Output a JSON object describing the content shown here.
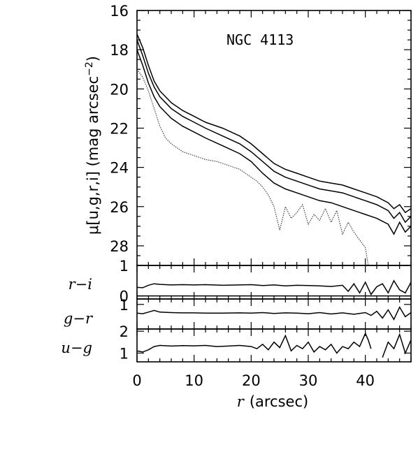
{
  "chart_data": {
    "type": "line",
    "annotation": "NGC 4113",
    "xlabel_var": "r",
    "xlabel_unit": "(arcsec)",
    "ylabel_main": "μ[u,g,r,i] (mag arcsec",
    "ylabel_exp": "−2",
    "ylabel_close": ")",
    "xlim": [
      0,
      48
    ],
    "x_ticks": [
      "0",
      "10",
      "20",
      "30",
      "40"
    ],
    "x_tick_values": [
      0,
      10,
      20,
      30,
      40
    ],
    "panels": [
      {
        "name": "mu",
        "ylim": [
          16,
          29
        ],
        "inverted": true,
        "y_tick_labels": [
          "16",
          "18",
          "20",
          "22",
          "24",
          "26",
          "28"
        ],
        "y_tick_values": [
          16,
          18,
          20,
          22,
          24,
          26,
          28
        ],
        "series": [
          {
            "style": "solid",
            "x": [
              0,
              1,
              2,
              3,
              4,
              6,
              8,
              10,
              12,
              15,
              18,
              20,
              22,
              24,
              26,
              28,
              30,
              32,
              34,
              36,
              38,
              40,
              42,
              44,
              45,
              46,
              47,
              48
            ],
            "y": [
              17.2,
              17.9,
              18.8,
              19.6,
              20.1,
              20.7,
              21.1,
              21.4,
              21.7,
              22.0,
              22.4,
              22.8,
              23.3,
              23.8,
              24.1,
              24.3,
              24.5,
              24.7,
              24.8,
              24.9,
              25.1,
              25.3,
              25.5,
              25.8,
              26.1,
              25.9,
              26.3,
              26.1
            ]
          },
          {
            "style": "solid",
            "x": [
              0,
              1,
              2,
              3,
              4,
              6,
              8,
              10,
              12,
              15,
              18,
              20,
              22,
              24,
              26,
              28,
              30,
              32,
              34,
              36,
              38,
              40,
              42,
              44,
              45,
              46,
              47,
              48
            ],
            "y": [
              17.5,
              18.3,
              19.2,
              19.9,
              20.4,
              21.0,
              21.4,
              21.7,
              22.0,
              22.4,
              22.8,
              23.2,
              23.7,
              24.2,
              24.5,
              24.7,
              24.9,
              25.1,
              25.2,
              25.3,
              25.5,
              25.7,
              25.9,
              26.2,
              26.6,
              26.3,
              26.8,
              26.5
            ]
          },
          {
            "style": "solid",
            "x": [
              0,
              1,
              2,
              3,
              4,
              6,
              8,
              10,
              12,
              15,
              18,
              20,
              22,
              24,
              26,
              28,
              30,
              32,
              34,
              36,
              38,
              40,
              42,
              44,
              45,
              46,
              47,
              48
            ],
            "y": [
              18.0,
              18.8,
              19.7,
              20.4,
              20.9,
              21.5,
              21.9,
              22.2,
              22.5,
              22.9,
              23.3,
              23.7,
              24.3,
              24.8,
              25.1,
              25.3,
              25.5,
              25.7,
              25.8,
              26.0,
              26.2,
              26.4,
              26.6,
              26.9,
              27.4,
              26.8,
              27.3,
              27.0
            ]
          },
          {
            "style": "dotted",
            "x": [
              0,
              1,
              2,
              3,
              4,
              5,
              6,
              7,
              8,
              10,
              12,
              14,
              16,
              18,
              20,
              21,
              22,
              23,
              24,
              25,
              26,
              27,
              28,
              29,
              30,
              31,
              32,
              33,
              34,
              35,
              36,
              37,
              38,
              39,
              40,
              40.5
            ],
            "y": [
              19.0,
              19.4,
              20.1,
              21.0,
              21.9,
              22.5,
              22.8,
              23.0,
              23.2,
              23.4,
              23.6,
              23.7,
              23.9,
              24.1,
              24.5,
              24.7,
              25.0,
              25.4,
              26.0,
              27.2,
              26.0,
              26.6,
              26.3,
              25.9,
              26.9,
              26.4,
              26.7,
              26.1,
              26.8,
              26.2,
              27.4,
              26.8,
              27.3,
              27.7,
              28.1,
              29.0
            ]
          }
        ]
      },
      {
        "name": "r-i",
        "label": "r−i",
        "ylim": [
          -0.1,
          1
        ],
        "y_tick_labels": [
          "1",
          "0"
        ],
        "y_tick_values": [
          1,
          0
        ],
        "series": [
          {
            "style": "solid",
            "x": [
              0,
              1,
              2,
              3,
              4,
              6,
              8,
              10,
              12,
              15,
              18,
              20,
              22,
              24,
              26,
              28,
              30,
              32,
              34,
              36,
              37,
              38,
              39,
              40,
              41,
              42,
              43,
              44,
              45,
              46,
              47,
              48
            ],
            "y": [
              0.28,
              0.27,
              0.35,
              0.4,
              0.38,
              0.36,
              0.37,
              0.36,
              0.37,
              0.35,
              0.36,
              0.37,
              0.34,
              0.36,
              0.33,
              0.35,
              0.34,
              0.33,
              0.31,
              0.35,
              0.15,
              0.4,
              0.1,
              0.45,
              0.05,
              0.3,
              0.4,
              0.1,
              0.5,
              0.2,
              0.1,
              0.45
            ]
          }
        ]
      },
      {
        "name": "g-r",
        "label": "g−r",
        "ylim": [
          0.1,
          1.2
        ],
        "y_tick_labels": [
          "1"
        ],
        "y_tick_values": [
          1
        ],
        "series": [
          {
            "style": "solid",
            "x": [
              0,
              1,
              2,
              3,
              4,
              6,
              8,
              10,
              12,
              15,
              18,
              20,
              22,
              24,
              26,
              28,
              30,
              32,
              34,
              36,
              38,
              40,
              41,
              42,
              43,
              44,
              45,
              46,
              47,
              48
            ],
            "y": [
              0.68,
              0.66,
              0.72,
              0.78,
              0.72,
              0.7,
              0.69,
              0.69,
              0.68,
              0.68,
              0.69,
              0.68,
              0.7,
              0.67,
              0.69,
              0.68,
              0.66,
              0.7,
              0.65,
              0.69,
              0.64,
              0.7,
              0.6,
              0.75,
              0.5,
              0.8,
              0.45,
              0.9,
              0.55,
              0.7
            ]
          }
        ]
      },
      {
        "name": "u-g",
        "label": "u−g",
        "ylim": [
          0.6,
          2.1
        ],
        "y_tick_labels": [
          "2",
          "1"
        ],
        "y_tick_values": [
          2,
          1
        ],
        "series": [
          {
            "style": "solid",
            "x": [
              0,
              1,
              2,
              3,
              4,
              6,
              8,
              10,
              12,
              14,
              16,
              18,
              20,
              21,
              22,
              23,
              24,
              25,
              26,
              27,
              28,
              29,
              30,
              31,
              32,
              33,
              34,
              35,
              36,
              37,
              38,
              39,
              40,
              40.5,
              41
            ],
            "y": [
              1.1,
              1.05,
              1.15,
              1.3,
              1.35,
              1.32,
              1.34,
              1.33,
              1.35,
              1.3,
              1.32,
              1.35,
              1.3,
              1.2,
              1.4,
              1.15,
              1.5,
              1.25,
              1.8,
              1.1,
              1.35,
              1.2,
              1.5,
              1.05,
              1.3,
              1.15,
              1.4,
              1.0,
              1.3,
              1.2,
              1.5,
              1.3,
              1.9,
              1.6,
              1.2
            ]
          },
          {
            "style": "solid",
            "x": [
              43,
              44,
              45,
              46,
              47,
              48
            ],
            "y": [
              0.8,
              1.5,
              1.2,
              1.85,
              1.0,
              1.6
            ]
          }
        ]
      }
    ]
  }
}
